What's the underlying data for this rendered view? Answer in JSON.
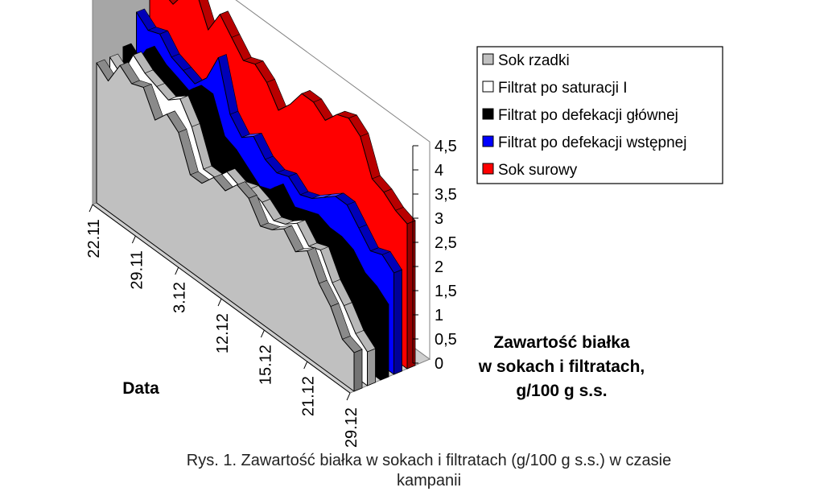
{
  "chart_data": {
    "type": "area",
    "subtype": "3d-area",
    "title": "",
    "xlabel": "Data",
    "ylabel": [
      "Zawartość białka",
      "w sokach i filtratach,",
      "g/100 g s.s."
    ],
    "ylim": [
      0,
      4.5
    ],
    "y_ticks": [
      "0",
      "0,5",
      "1",
      "1,5",
      "2",
      "2,5",
      "3",
      "3,5",
      "4",
      "4,5"
    ],
    "x_tick_labels": [
      "22.11",
      "29.11",
      "3.12",
      "12.12",
      "15.12",
      "21.12",
      "29.12"
    ],
    "legend_position": "top-right",
    "gridlines": false,
    "series": [
      {
        "name": "Sok rzadki",
        "color": "#c0c0c0",
        "values": [
          2.9,
          2.7,
          3.2,
          3.0,
          3.1,
          2.6,
          2.9,
          2.7,
          2.0,
          2.0,
          2.3,
          2.2,
          2.5,
          2.4,
          2.0,
          2.1,
          2.3,
          2.0,
          2.2,
          1.7,
          1.4,
          0.9,
          0.8
        ]
      },
      {
        "name": "Filtrat po saturacji I",
        "color": "#ffffff",
        "values": [
          2.9,
          2.7,
          3.3,
          3.1,
          3.0,
          2.9,
          3.1,
          2.7,
          2.0,
          2.0,
          2.3,
          2.2,
          2.3,
          2.2,
          2.0,
          2.1,
          2.3,
          2.0,
          2.1,
          1.6,
          1.3,
          0.9,
          0.7
        ]
      },
      {
        "name": "Filtrat po defekacji głównej",
        "color": "#000000",
        "values": [
          3.0,
          2.8,
          3.3,
          3.1,
          3.0,
          2.9,
          3.2,
          3.2,
          2.5,
          2.4,
          2.2,
          2.0,
          2.1,
          2.4,
          2.1,
          2.2,
          2.3,
          2.2,
          2.2,
          2.1,
          1.8,
          1.7,
          1.5
        ]
      },
      {
        "name": "Filtrat po defekacji wstępnej",
        "color": "#0000ff",
        "values": [
          3.6,
          3.4,
          3.5,
          3.2,
          3.1,
          3.0,
          3.3,
          3.9,
          2.9,
          2.6,
          2.8,
          2.5,
          2.4,
          2.5,
          2.3,
          2.4,
          2.6,
          2.8,
          2.8,
          2.5,
          2.2,
          2.3,
          2.1
        ]
      },
      {
        "name": "Sok surowy",
        "color": "#ff0000",
        "values": [
          4.3,
          4.1,
          4.0,
          4.4,
          4.6,
          4.0,
          4.5,
          4.2,
          3.9,
          4.0,
          3.8,
          3.4,
          3.7,
          4.1,
          4.1,
          3.9,
          4.2,
          4.3,
          4.1,
          3.4,
          3.3,
          3.1,
          3.0
        ]
      }
    ]
  },
  "caption": [
    "Rys. 1. Zawartość białka w sokach i filtratach (g/100 g s.s.) w czasie",
    "kampanii"
  ]
}
